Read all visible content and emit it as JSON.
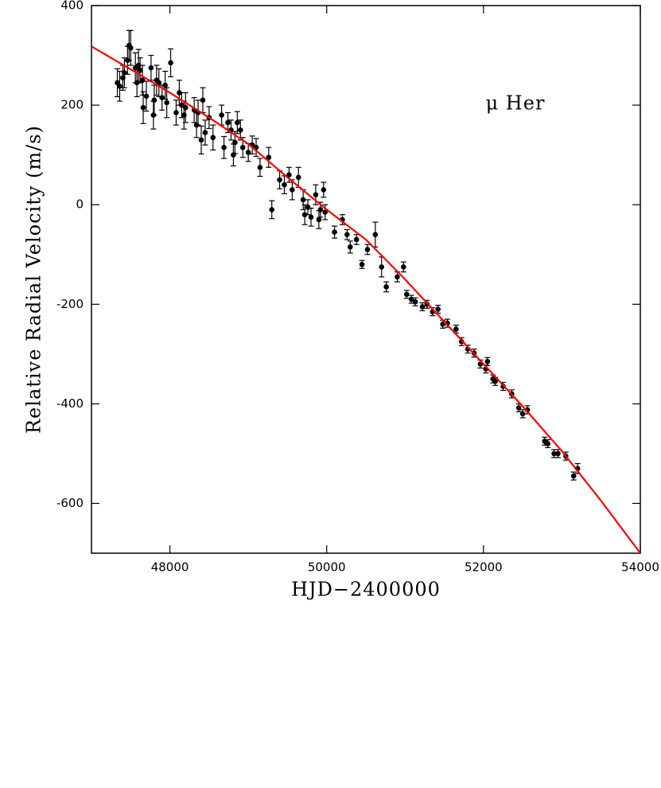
{
  "chart_data": {
    "type": "scatter",
    "xlabel": "HJD−2400000",
    "ylabel": "Relative Radial Velocity (m/s)",
    "annotation": "μ Her",
    "xlim": [
      47000,
      54000
    ],
    "ylim": [
      -700,
      400
    ],
    "xticks": [
      48000,
      50000,
      52000,
      54000
    ],
    "yticks": [
      -600,
      -400,
      -200,
      0,
      200,
      400
    ],
    "series": [
      {
        "color": "#000000",
        "x": [
          47330,
          47360,
          47400,
          47420,
          47460,
          47480,
          47500,
          47560,
          47580,
          47600,
          47620,
          47650,
          47660,
          47700,
          47760,
          47790,
          47800,
          47830,
          47860,
          47900,
          47940,
          47960,
          48010,
          48080,
          48120,
          48150,
          48180,
          48200,
          48310,
          48340,
          48360,
          48400,
          48420,
          48450,
          48500,
          48550,
          48660,
          48690,
          48740,
          48780,
          48810,
          48830,
          48860,
          48900,
          48930,
          49000,
          49050,
          49100,
          49150,
          49260,
          49300,
          49400,
          49460,
          49520,
          49560,
          49640,
          49700,
          49720,
          49760,
          49800,
          49860,
          49900,
          49920,
          49960,
          49980,
          50100,
          50200,
          50260,
          50300,
          50380,
          50450,
          50520,
          50620,
          50700,
          50760,
          50900,
          50980,
          51020,
          51080,
          51130,
          51220,
          51280,
          51350,
          51420,
          51480,
          51540,
          51650,
          51720,
          51800,
          51880,
          51960,
          52030,
          52050,
          52120,
          52150,
          52250,
          52360,
          52450,
          52500,
          52560,
          52780,
          52820,
          52900,
          52950,
          53050,
          53150,
          53200
        ],
        "values": [
          245,
          238,
          255,
          265,
          290,
          320,
          315,
          275,
          245,
          280,
          270,
          250,
          195,
          218,
          275,
          180,
          210,
          250,
          245,
          215,
          240,
          205,
          285,
          185,
          225,
          200,
          180,
          195,
          190,
          160,
          185,
          130,
          210,
          145,
          175,
          135,
          180,
          115,
          165,
          150,
          100,
          125,
          165,
          150,
          115,
          105,
          120,
          115,
          75,
          95,
          -10,
          50,
          40,
          60,
          30,
          55,
          10,
          -20,
          -5,
          -25,
          20,
          -30,
          -10,
          30,
          -15,
          -55,
          -30,
          -60,
          -85,
          -70,
          -120,
          -90,
          -60,
          -125,
          -165,
          -145,
          -125,
          -180,
          -190,
          -195,
          -205,
          -200,
          -215,
          -210,
          -240,
          -238,
          -250,
          -275,
          -290,
          -298,
          -320,
          -330,
          -315,
          -350,
          -355,
          -365,
          -380,
          -408,
          -420,
          -412,
          -475,
          -480,
          -500,
          -500,
          -505,
          -545,
          -530
        ],
        "errors": [
          28,
          30,
          25,
          30,
          28,
          30,
          35,
          30,
          28,
          32,
          25,
          30,
          32,
          30,
          25,
          28,
          30,
          30,
          28,
          25,
          28,
          30,
          28,
          25,
          25,
          25,
          28,
          30,
          25,
          25,
          25,
          28,
          25,
          25,
          22,
          25,
          20,
          22,
          20,
          20,
          22,
          22,
          22,
          20,
          20,
          18,
          18,
          18,
          18,
          20,
          18,
          18,
          18,
          15,
          20,
          20,
          20,
          20,
          15,
          18,
          20,
          18,
          15,
          15,
          15,
          12,
          10,
          10,
          12,
          10,
          8,
          10,
          25,
          20,
          10,
          10,
          10,
          8,
          8,
          8,
          8,
          8,
          8,
          8,
          8,
          8,
          8,
          8,
          8,
          8,
          8,
          8,
          8,
          8,
          8,
          8,
          8,
          8,
          8,
          8,
          8,
          8,
          8,
          8,
          8,
          8,
          10
        ]
      },
      {
        "type": "line",
        "color": "#ff0000",
        "x": [
          47000,
          47500,
          48000,
          48500,
          49000,
          49500,
          50000,
          50500,
          51000,
          51500,
          52000,
          52500,
          53000,
          53500,
          54000
        ],
        "values": [
          318,
          272,
          225,
          175,
          122,
          55,
          -10,
          -70,
          -150,
          -235,
          -320,
          -405,
          -495,
          -595,
          -700
        ]
      }
    ]
  }
}
